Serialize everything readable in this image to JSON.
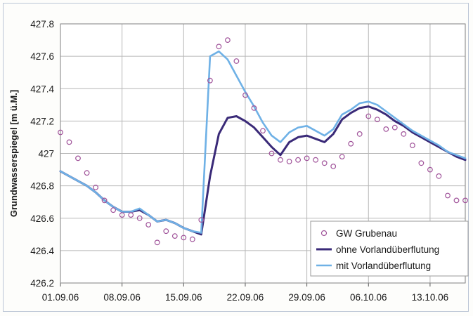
{
  "chart_data": {
    "type": "line",
    "ylabel": "Grundwasserspiegel [m ü.M.]",
    "xlabel": "",
    "title": "",
    "x_ticks": [
      "01.09.06",
      "08.09.06",
      "15.09.06",
      "22.09.06",
      "29.09.06",
      "06.10.06",
      "13.10.06"
    ],
    "x_range": [
      "01.09.06",
      "17.10.06"
    ],
    "y_ticks": [
      "426.2",
      "426.4",
      "426.6",
      "426.8",
      "427",
      "427.2",
      "427.4",
      "427.6",
      "427.8"
    ],
    "ylim": [
      426.2,
      427.8
    ],
    "grid": true,
    "legend_position": "bottom-right",
    "series": [
      {
        "name": "GW Grubenau",
        "style": "markers",
        "color": "#a0539a",
        "x": [
          "01.09.06",
          "02.09.06",
          "03.09.06",
          "04.09.06",
          "05.09.06",
          "06.09.06",
          "07.09.06",
          "08.09.06",
          "09.09.06",
          "10.09.06",
          "11.09.06",
          "12.09.06",
          "13.09.06",
          "14.09.06",
          "15.09.06",
          "16.09.06",
          "17.09.06",
          "18.09.06",
          "19.09.06",
          "20.09.06",
          "21.09.06",
          "22.09.06",
          "23.09.06",
          "24.09.06",
          "25.09.06",
          "26.09.06",
          "27.09.06",
          "28.09.06",
          "29.09.06",
          "30.09.06",
          "01.10.06",
          "02.10.06",
          "03.10.06",
          "04.10.06",
          "05.10.06",
          "06.10.06",
          "07.10.06",
          "08.10.06",
          "09.10.06",
          "10.10.06",
          "11.10.06",
          "12.10.06",
          "13.10.06",
          "14.10.06",
          "15.10.06",
          "16.10.06",
          "17.10.06"
        ],
        "y": [
          427.13,
          427.07,
          426.97,
          426.88,
          426.79,
          426.71,
          426.65,
          426.62,
          426.62,
          426.6,
          426.56,
          426.45,
          426.52,
          426.49,
          426.48,
          426.47,
          426.59,
          427.45,
          427.66,
          427.7,
          427.57,
          427.36,
          427.28,
          427.14,
          427.0,
          426.96,
          426.95,
          426.96,
          426.97,
          426.96,
          426.94,
          426.92,
          426.98,
          427.06,
          427.12,
          427.23,
          427.21,
          427.15,
          427.16,
          427.12,
          427.05,
          426.94,
          426.9,
          426.86,
          426.74,
          426.71,
          426.71
        ]
      },
      {
        "name": "ohne Vorlandüberflutung",
        "style": "line",
        "color": "#3a2a78",
        "x": [
          "01.09.06",
          "02.09.06",
          "03.09.06",
          "04.09.06",
          "05.09.06",
          "06.09.06",
          "07.09.06",
          "08.09.06",
          "09.09.06",
          "10.09.06",
          "11.09.06",
          "12.09.06",
          "13.09.06",
          "14.09.06",
          "15.09.06",
          "16.09.06",
          "17.09.06",
          "18.09.06",
          "19.09.06",
          "20.09.06",
          "21.09.06",
          "22.09.06",
          "23.09.06",
          "24.09.06",
          "25.09.06",
          "26.09.06",
          "27.09.06",
          "28.09.06",
          "29.09.06",
          "30.09.06",
          "01.10.06",
          "02.10.06",
          "03.10.06",
          "04.10.06",
          "05.10.06",
          "06.10.06",
          "07.10.06",
          "08.10.06",
          "09.10.06",
          "10.10.06",
          "11.10.06",
          "12.10.06",
          "13.10.06",
          "14.10.06",
          "15.10.06",
          "16.10.06",
          "17.10.06"
        ],
        "y": [
          426.89,
          426.86,
          426.83,
          426.8,
          426.76,
          426.71,
          426.67,
          426.64,
          426.64,
          426.65,
          426.62,
          426.58,
          426.59,
          426.57,
          426.54,
          426.52,
          426.5,
          426.86,
          427.12,
          427.22,
          427.23,
          427.2,
          427.16,
          427.1,
          427.04,
          426.99,
          427.07,
          427.1,
          427.11,
          427.09,
          427.07,
          427.12,
          427.21,
          427.25,
          427.28,
          427.29,
          427.27,
          427.24,
          427.2,
          427.17,
          427.13,
          427.1,
          427.07,
          427.04,
          427.01,
          426.98,
          426.96
        ]
      },
      {
        "name": "mit Vorlandüberflutung",
        "style": "line",
        "color": "#6fb1e6",
        "x": [
          "01.09.06",
          "02.09.06",
          "03.09.06",
          "04.09.06",
          "05.09.06",
          "06.09.06",
          "07.09.06",
          "08.09.06",
          "09.09.06",
          "10.09.06",
          "11.09.06",
          "12.09.06",
          "13.09.06",
          "14.09.06",
          "15.09.06",
          "16.09.06",
          "17.09.06",
          "18.09.06",
          "19.09.06",
          "20.09.06",
          "21.09.06",
          "22.09.06",
          "23.09.06",
          "24.09.06",
          "25.09.06",
          "26.09.06",
          "27.09.06",
          "28.09.06",
          "29.09.06",
          "30.09.06",
          "01.10.06",
          "02.10.06",
          "03.10.06",
          "04.10.06",
          "05.10.06",
          "06.10.06",
          "07.10.06",
          "08.10.06",
          "09.10.06",
          "10.10.06",
          "11.10.06",
          "12.10.06",
          "13.10.06",
          "14.10.06",
          "15.10.06",
          "16.10.06",
          "17.10.06"
        ],
        "y": [
          426.89,
          426.86,
          426.83,
          426.8,
          426.76,
          426.71,
          426.67,
          426.64,
          426.64,
          426.66,
          426.62,
          426.58,
          426.59,
          426.57,
          426.54,
          426.52,
          426.51,
          427.6,
          427.63,
          427.58,
          427.48,
          427.38,
          427.29,
          427.19,
          427.11,
          427.07,
          427.13,
          427.16,
          427.17,
          427.14,
          427.11,
          427.15,
          427.24,
          427.27,
          427.31,
          427.32,
          427.3,
          427.26,
          427.22,
          427.18,
          427.14,
          427.11,
          427.08,
          427.05,
          427.01,
          426.99,
          426.97
        ]
      }
    ]
  }
}
